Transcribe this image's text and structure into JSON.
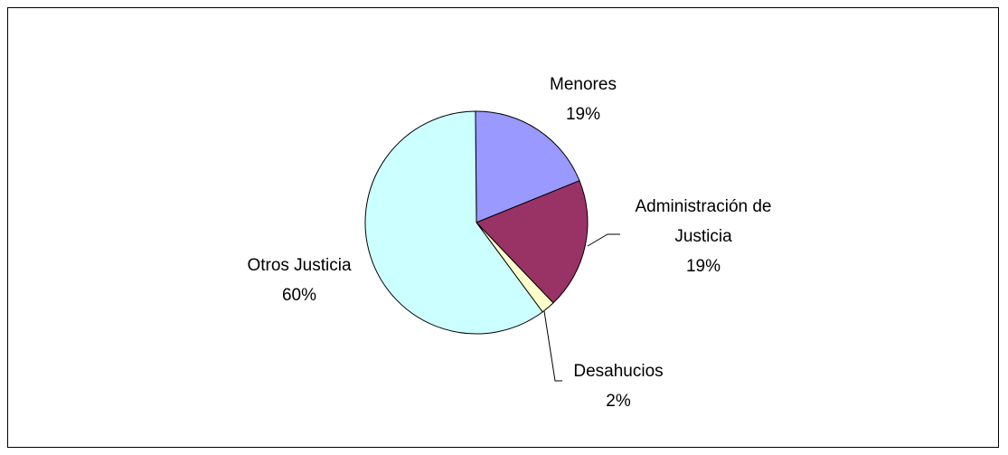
{
  "chart_data": {
    "type": "pie",
    "title": "",
    "legend": "none",
    "slices": [
      {
        "label": "Menores",
        "value": 19,
        "display": "19%",
        "color": "#9999ff"
      },
      {
        "label": "Administración de Justicia",
        "value": 19,
        "display": "19%",
        "color": "#993366"
      },
      {
        "label": "Desahucios",
        "value": 2,
        "display": "2%",
        "color": "#ffffcc"
      },
      {
        "label": "Otros Justicia",
        "value": 60,
        "display": "60%",
        "color": "#ccffff"
      }
    ],
    "label_lines": {
      "Menores": [
        "Menores"
      ],
      "Administración de Justicia": [
        "Administración de",
        "Justicia"
      ],
      "Desahucios": [
        "Desahucios"
      ],
      "Otros Justicia": [
        "Otros Justicia"
      ]
    }
  }
}
